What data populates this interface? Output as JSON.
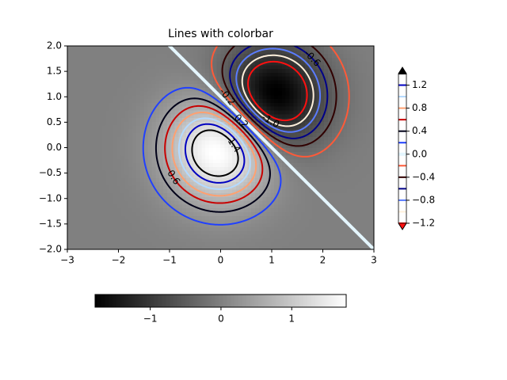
{
  "chart_data": {
    "type": "contour",
    "title": "Lines with colorbar",
    "xlim": [
      -3,
      3
    ],
    "ylim": [
      -2,
      2
    ],
    "xticks": [
      {
        "value": -3,
        "label": "−3"
      },
      {
        "value": -2,
        "label": "−2"
      },
      {
        "value": -1,
        "label": "−1"
      },
      0,
      1,
      2,
      3
    ],
    "yticks": [
      {
        "value": -2,
        "label": "−2.0"
      },
      {
        "value": -1.5,
        "label": "−1.5"
      },
      {
        "value": -1,
        "label": "−1.0"
      },
      {
        "value": -0.5,
        "label": "−0.5"
      },
      {
        "value": 0,
        "label": "0.0"
      },
      0.5,
      {
        "value": 1,
        "label": "1.0"
      },
      1.5,
      {
        "value": 2,
        "label": "2.0"
      }
    ],
    "levels": [
      -1.2,
      -1,
      -0.8,
      -0.6,
      -0.4,
      -0.2,
      0,
      0.2,
      0.4,
      0.6,
      0.8,
      1,
      1.2,
      1.4
    ],
    "level_colors": [
      "#ff1010",
      "#fff0dc",
      "#5a7cff",
      "#000088",
      "#300000",
      "#ff5a38",
      "#e4f6ff",
      "#2040ff",
      "#000018",
      "#c80000",
      "#ffa070",
      "#b4daff",
      "#0000c0",
      "#000000"
    ],
    "under_color": "#ff1010",
    "over_color": "#000000",
    "contour_labels": [
      {
        "value": 1.4,
        "label": "1.4"
      },
      {
        "value": 0.6,
        "label": "0.6"
      },
      {
        "value": 0.2,
        "label": "0.2"
      },
      {
        "value": -0.2,
        "label": "-0.2"
      },
      {
        "value": -1,
        "label": "-1.0"
      },
      {
        "value": -0.6,
        "label": "-0.6"
      }
    ],
    "image_colorbar": {
      "lim": [
        -1.78,
        1.77
      ],
      "ticks": [
        {
          "value": -1,
          "label": "−1"
        },
        0,
        1
      ],
      "colors": [
        "#000000",
        "#ffffff"
      ]
    },
    "line_colorbar": {
      "ticks": [
        {
          "value": -1.2,
          "label": "−1.2"
        },
        {
          "value": -0.8,
          "label": "−0.8"
        },
        {
          "value": -0.4,
          "label": "−0.4"
        },
        {
          "value": 0,
          "label": "0.0"
        },
        0.4,
        0.8,
        1.2
      ]
    }
  }
}
